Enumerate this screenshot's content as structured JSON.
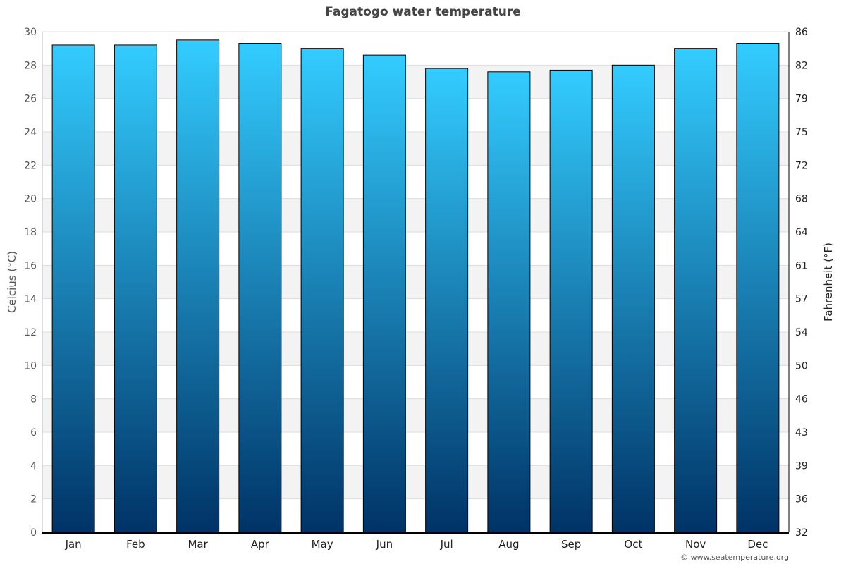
{
  "chart_data": {
    "type": "bar",
    "title": "Fagatogo water temperature",
    "categories": [
      "Jan",
      "Feb",
      "Mar",
      "Apr",
      "May",
      "Jun",
      "Jul",
      "Aug",
      "Sep",
      "Oct",
      "Nov",
      "Dec"
    ],
    "values": [
      29.2,
      29.2,
      29.5,
      29.3,
      29.0,
      28.6,
      27.8,
      27.6,
      27.7,
      28.0,
      29.0,
      29.3
    ],
    "ylabel": "Celcius (°C)",
    "y2label": "Fahrenheit (°F)",
    "ylim": [
      0,
      30
    ],
    "yticks": [
      0,
      2,
      4,
      6,
      8,
      10,
      12,
      14,
      16,
      18,
      20,
      22,
      24,
      26,
      28,
      30
    ],
    "y2ticks": [
      32,
      36,
      39,
      43,
      46,
      50,
      54,
      57,
      61,
      64,
      68,
      72,
      75,
      79,
      82,
      86
    ],
    "grid": true,
    "colors": {
      "bar_top": "#33ccff",
      "bar_bottom": "#003366",
      "band": "#f3f3f3"
    }
  },
  "credit": "© www.seatemperature.org"
}
